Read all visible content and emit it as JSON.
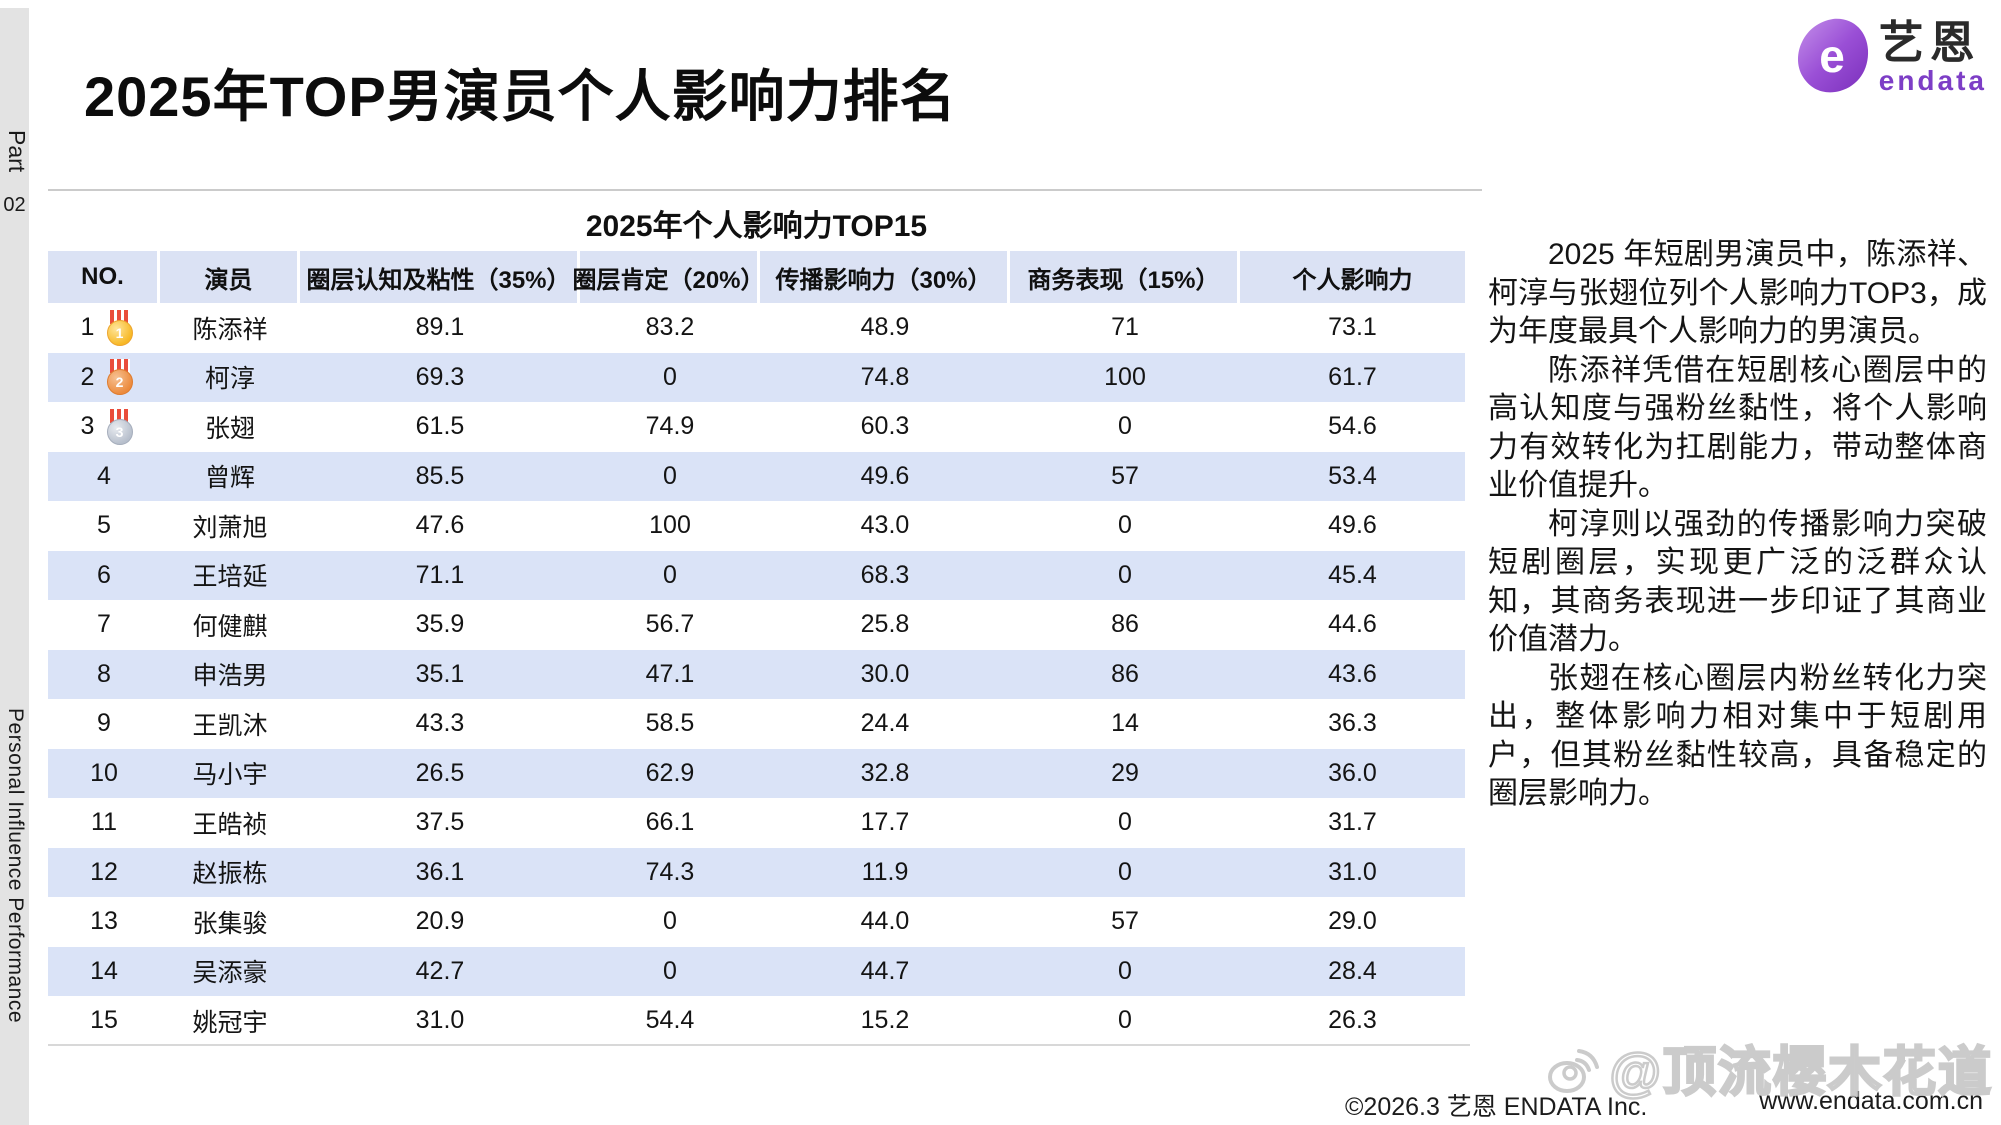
{
  "sidebar": {
    "part_word": "Part",
    "part_number": "02",
    "bottom_text": "Personal Influence Performance"
  },
  "title": "2025年TOP男演员个人影响力排名",
  "logo": {
    "cn": "艺恩",
    "en": "endata"
  },
  "table": {
    "subtitle": "2025年个人影响力TOP15",
    "columns": [
      "NO.",
      "演员",
      "圈层认知及粘性（35%）",
      "圈层肯定（20%）",
      "传播影响力（30%）",
      "商务表现（15%）",
      "个人影响力"
    ],
    "rows": [
      {
        "no": "1",
        "medal": "1",
        "actor": "陈添祥",
        "values": [
          "89.1",
          "83.2",
          "48.9",
          "71",
          "73.1"
        ]
      },
      {
        "no": "2",
        "medal": "2",
        "actor": "柯淳",
        "values": [
          "69.3",
          "0",
          "74.8",
          "100",
          "61.7"
        ]
      },
      {
        "no": "3",
        "medal": "3",
        "actor": "张翅",
        "values": [
          "61.5",
          "74.9",
          "60.3",
          "0",
          "54.6"
        ]
      },
      {
        "no": "4",
        "medal": null,
        "actor": "曾辉",
        "values": [
          "85.5",
          "0",
          "49.6",
          "57",
          "53.4"
        ]
      },
      {
        "no": "5",
        "medal": null,
        "actor": "刘萧旭",
        "values": [
          "47.6",
          "100",
          "43.0",
          "0",
          "49.6"
        ]
      },
      {
        "no": "6",
        "medal": null,
        "actor": "王培延",
        "values": [
          "71.1",
          "0",
          "68.3",
          "0",
          "45.4"
        ]
      },
      {
        "no": "7",
        "medal": null,
        "actor": "何健麒",
        "values": [
          "35.9",
          "56.7",
          "25.8",
          "86",
          "44.6"
        ]
      },
      {
        "no": "8",
        "medal": null,
        "actor": "申浩男",
        "values": [
          "35.1",
          "47.1",
          "30.0",
          "86",
          "43.6"
        ]
      },
      {
        "no": "9",
        "medal": null,
        "actor": "王凯沐",
        "values": [
          "43.3",
          "58.5",
          "24.4",
          "14",
          "36.3"
        ]
      },
      {
        "no": "10",
        "medal": null,
        "actor": "马小宇",
        "values": [
          "26.5",
          "62.9",
          "32.8",
          "29",
          "36.0"
        ]
      },
      {
        "no": "11",
        "medal": null,
        "actor": "王皓祯",
        "values": [
          "37.5",
          "66.1",
          "17.7",
          "0",
          "31.7"
        ]
      },
      {
        "no": "12",
        "medal": null,
        "actor": "赵振栋",
        "values": [
          "36.1",
          "74.3",
          "11.9",
          "0",
          "31.0"
        ]
      },
      {
        "no": "13",
        "medal": null,
        "actor": "张集骏",
        "values": [
          "20.9",
          "0",
          "44.0",
          "57",
          "29.0"
        ]
      },
      {
        "no": "14",
        "medal": null,
        "actor": "吴添豪",
        "values": [
          "42.7",
          "0",
          "44.7",
          "0",
          "28.4"
        ]
      },
      {
        "no": "15",
        "medal": null,
        "actor": "姚冠宇",
        "values": [
          "31.0",
          "54.4",
          "15.2",
          "0",
          "26.3"
        ]
      }
    ]
  },
  "chart_data": {
    "type": "table",
    "title": "2025年个人影响力TOP15",
    "columns": [
      "NO.",
      "演员",
      "圈层认知及粘性（35%）",
      "圈层肯定（20%）",
      "传播影响力（30%）",
      "商务表现（15%）",
      "个人影响力"
    ],
    "categories": [
      "陈添祥",
      "柯淳",
      "张翅",
      "曾辉",
      "刘萧旭",
      "王培延",
      "何健麒",
      "申浩男",
      "王凯沐",
      "马小宇",
      "王皓祯",
      "赵振栋",
      "张集骏",
      "吴添豪",
      "姚冠宇"
    ],
    "series": [
      {
        "name": "圈层认知及粘性（35%）",
        "values": [
          89.1,
          69.3,
          61.5,
          85.5,
          47.6,
          71.1,
          35.9,
          35.1,
          43.3,
          26.5,
          37.5,
          36.1,
          20.9,
          42.7,
          31.0
        ]
      },
      {
        "name": "圈层肯定（20%）",
        "values": [
          83.2,
          0,
          74.9,
          0,
          100,
          0,
          56.7,
          47.1,
          58.5,
          62.9,
          66.1,
          74.3,
          0,
          0,
          54.4
        ]
      },
      {
        "name": "传播影响力（30%）",
        "values": [
          48.9,
          74.8,
          60.3,
          49.6,
          43.0,
          68.3,
          25.8,
          30.0,
          24.4,
          32.8,
          17.7,
          11.9,
          44.0,
          44.7,
          15.2
        ]
      },
      {
        "name": "商务表现（15%）",
        "values": [
          71,
          100,
          0,
          57,
          0,
          0,
          86,
          86,
          14,
          29,
          0,
          0,
          57,
          0,
          0
        ]
      },
      {
        "name": "个人影响力",
        "values": [
          73.1,
          61.7,
          54.6,
          53.4,
          49.6,
          45.4,
          44.6,
          43.6,
          36.3,
          36.0,
          31.7,
          31.0,
          29.0,
          28.4,
          26.3
        ]
      }
    ]
  },
  "analysis": {
    "paragraphs": [
      "2025 年短剧男演员中，陈添祥、柯淳与张翅位列个人影响力TOP3，成为年度最具个人影响力的男演员。",
      "陈添祥凭借在短剧核心圈层中的高认知度与强粉丝黏性，将个人影响力有效转化为扛剧能力，带动整体商业价值提升。",
      "柯淳则以强劲的传播影响力突破短剧圈层，实现更广泛的泛群众认知，其商务表现进一步印证了其商业价值潜力。",
      "张翅在核心圈层内粉丝转化力突出，整体影响力相对集中于短剧用户，但其粉丝黏性较高，具备稳定的圈层影响力。"
    ]
  },
  "footer": {
    "copyright": "©2026.3  艺恩 ENDATA Inc.",
    "website": "www.endata.com.cn"
  },
  "watermark": {
    "handle": "@顶流樱木花道"
  }
}
